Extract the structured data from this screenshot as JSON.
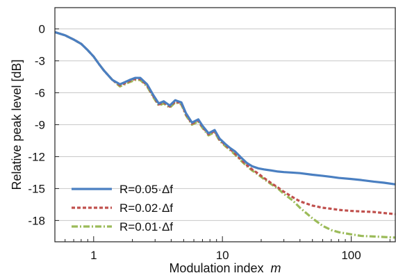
{
  "chart_data": {
    "type": "line",
    "xlabel": "Modulation index",
    "xlabel_var": "m",
    "ylabel": "Relative peak level [dB]",
    "x_scale": "log",
    "xlim": [
      0.5,
      220
    ],
    "ylim": [
      -20,
      2
    ],
    "x_ticks": [
      {
        "value": 1,
        "label": "1"
      },
      {
        "value": 10,
        "label": "10"
      },
      {
        "value": 100,
        "label": "100"
      }
    ],
    "y_ticks": [
      {
        "value": 0,
        "label": "0"
      },
      {
        "value": -3,
        "label": "-3"
      },
      {
        "value": -6,
        "label": "-6"
      },
      {
        "value": -9,
        "label": "-9"
      },
      {
        "value": -12,
        "label": "-12"
      },
      {
        "value": -15,
        "label": "-15"
      },
      {
        "value": -18,
        "label": "-18"
      }
    ],
    "grid": "horizontal",
    "legend_position": "bottom-left",
    "series": [
      {
        "name": "R=0.05·Δf",
        "color": "#4a7fc1",
        "style": "solid",
        "x": [
          0.5,
          0.6,
          0.7,
          0.8,
          0.9,
          1.0,
          1.1,
          1.2,
          1.4,
          1.6,
          1.75,
          1.9,
          2.1,
          2.3,
          2.6,
          2.9,
          3.2,
          3.5,
          3.9,
          4.3,
          4.8,
          5.2,
          5.8,
          6.5,
          7.0,
          7.8,
          8.7,
          9.5,
          10.5,
          11.5,
          12.5,
          14,
          15.5,
          17,
          19,
          21,
          24,
          27,
          30,
          35,
          40,
          50,
          60,
          70,
          80,
          100,
          120,
          150,
          180,
          220
        ],
        "y": [
          -0.3,
          -0.6,
          -1.0,
          -1.4,
          -2.0,
          -2.6,
          -3.3,
          -3.9,
          -4.8,
          -5.2,
          -5.0,
          -4.8,
          -4.6,
          -4.6,
          -5.2,
          -6.2,
          -7.0,
          -6.8,
          -7.2,
          -6.7,
          -6.9,
          -7.9,
          -8.8,
          -8.5,
          -9.1,
          -9.8,
          -9.5,
          -10.3,
          -10.8,
          -11.2,
          -11.5,
          -12.1,
          -12.6,
          -12.9,
          -13.1,
          -13.2,
          -13.3,
          -13.4,
          -13.45,
          -13.5,
          -13.55,
          -13.7,
          -13.8,
          -13.9,
          -14.0,
          -14.1,
          -14.2,
          -14.35,
          -14.45,
          -14.6
        ]
      },
      {
        "name": "R=0.02·Δf",
        "color": "#c0504d",
        "style": "dashed",
        "x": [
          0.5,
          0.6,
          0.7,
          0.8,
          0.9,
          1.0,
          1.1,
          1.2,
          1.4,
          1.6,
          1.75,
          1.9,
          2.1,
          2.3,
          2.6,
          2.9,
          3.2,
          3.5,
          3.9,
          4.3,
          4.8,
          5.2,
          5.8,
          6.5,
          7.0,
          7.8,
          8.7,
          9.5,
          10.5,
          11.5,
          12.5,
          14,
          15.5,
          17,
          19,
          21,
          24,
          27,
          30,
          35,
          40,
          50,
          60,
          70,
          80,
          100,
          120,
          150,
          180,
          220
        ],
        "y": [
          -0.3,
          -0.6,
          -1.0,
          -1.4,
          -2.0,
          -2.6,
          -3.3,
          -3.9,
          -4.8,
          -5.3,
          -5.1,
          -4.9,
          -4.7,
          -4.7,
          -5.3,
          -6.3,
          -7.1,
          -6.9,
          -7.3,
          -6.8,
          -7.0,
          -8.0,
          -8.9,
          -8.6,
          -9.2,
          -9.9,
          -9.6,
          -10.4,
          -10.9,
          -11.3,
          -11.7,
          -12.3,
          -12.8,
          -13.2,
          -13.6,
          -14.0,
          -14.5,
          -14.9,
          -15.3,
          -15.8,
          -16.2,
          -16.6,
          -16.8,
          -16.9,
          -17.0,
          -17.1,
          -17.15,
          -17.2,
          -17.3,
          -17.4
        ]
      },
      {
        "name": "R=0.01·Δf",
        "color": "#9bbb59",
        "style": "dash-dot",
        "x": [
          0.5,
          0.6,
          0.7,
          0.8,
          0.9,
          1.0,
          1.1,
          1.2,
          1.4,
          1.6,
          1.75,
          1.9,
          2.1,
          2.3,
          2.6,
          2.9,
          3.2,
          3.5,
          3.9,
          4.3,
          4.8,
          5.2,
          5.8,
          6.5,
          7.0,
          7.8,
          8.7,
          9.5,
          10.5,
          11.5,
          12.5,
          14,
          15.5,
          17,
          19,
          21,
          24,
          27,
          30,
          35,
          40,
          50,
          60,
          70,
          80,
          100,
          120,
          150,
          180,
          220
        ],
        "y": [
          -0.3,
          -0.6,
          -1.0,
          -1.4,
          -2.0,
          -2.6,
          -3.3,
          -3.9,
          -4.8,
          -5.4,
          -5.2,
          -5.0,
          -4.8,
          -4.8,
          -5.4,
          -6.4,
          -7.2,
          -7.0,
          -7.4,
          -6.9,
          -7.1,
          -8.1,
          -9.0,
          -8.7,
          -9.3,
          -10.0,
          -9.7,
          -10.5,
          -11.0,
          -11.4,
          -11.8,
          -12.4,
          -12.9,
          -13.3,
          -13.7,
          -14.1,
          -14.6,
          -15.0,
          -15.5,
          -16.1,
          -16.8,
          -17.8,
          -18.5,
          -18.9,
          -19.1,
          -19.3,
          -19.45,
          -19.5,
          -19.55,
          -19.6
        ]
      }
    ]
  }
}
